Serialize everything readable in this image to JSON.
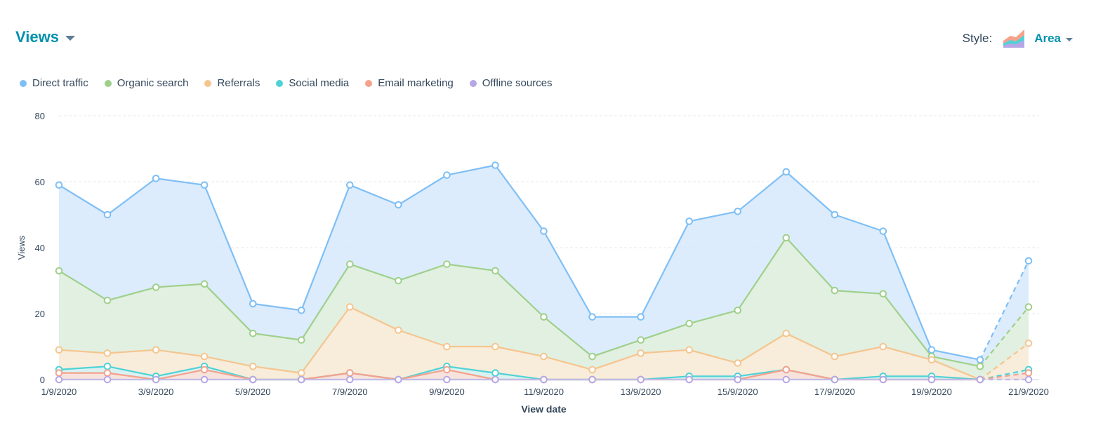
{
  "header": {
    "title": "Views"
  },
  "style_picker": {
    "label": "Style:",
    "value": "Area",
    "icon": "area-chart-icon"
  },
  "chart_data": {
    "type": "area",
    "stacked": false,
    "title": "Views",
    "xlabel": "View date",
    "ylabel": "Views",
    "ylim": [
      0,
      80
    ],
    "yticks": [
      0,
      20,
      40,
      60,
      80
    ],
    "categories": [
      "1/9/2020",
      "2/9/2020",
      "3/9/2020",
      "4/9/2020",
      "5/9/2020",
      "6/9/2020",
      "7/9/2020",
      "8/9/2020",
      "9/9/2020",
      "10/9/2020",
      "11/9/2020",
      "12/9/2020",
      "13/9/2020",
      "14/9/2020",
      "15/9/2020",
      "16/9/2020",
      "17/9/2020",
      "18/9/2020",
      "19/9/2020",
      "20/9/2020",
      "21/9/2020"
    ],
    "x_tick_labels": [
      "1/9/2020",
      "3/9/2020",
      "5/9/2020",
      "7/9/2020",
      "9/9/2020",
      "11/9/2020",
      "13/9/2020",
      "15/9/2020",
      "17/9/2020",
      "19/9/2020",
      "21/9/2020"
    ],
    "projected_last_point": true,
    "grid": true,
    "legend_position": "top-left",
    "series": [
      {
        "name": "Direct traffic",
        "color": "#7fbff5",
        "fill": "#d6e9fb",
        "values": [
          59,
          50,
          61,
          59,
          23,
          21,
          59,
          53,
          62,
          65,
          45,
          19,
          19,
          48,
          51,
          63,
          50,
          45,
          9,
          6,
          36
        ]
      },
      {
        "name": "Organic search",
        "color": "#9fd08b",
        "fill": "#e2f1dc",
        "values": [
          33,
          24,
          28,
          29,
          14,
          12,
          35,
          30,
          35,
          33,
          19,
          7,
          12,
          17,
          21,
          43,
          27,
          26,
          7,
          4,
          22
        ]
      },
      {
        "name": "Referrals",
        "color": "#f5c58f",
        "fill": "#fbebd8",
        "values": [
          9,
          8,
          9,
          7,
          4,
          2,
          22,
          15,
          10,
          10,
          7,
          3,
          8,
          9,
          5,
          14,
          7,
          10,
          6,
          0,
          11
        ]
      },
      {
        "name": "Social media",
        "color": "#4fd2d6",
        "fill": "#d3f3f4",
        "values": [
          3,
          4,
          1,
          4,
          0,
          0,
          2,
          0,
          4,
          2,
          0,
          0,
          0,
          1,
          1,
          3,
          0,
          1,
          1,
          0,
          3
        ]
      },
      {
        "name": "Email marketing",
        "color": "#f5a18c",
        "fill": "#fce0d9",
        "values": [
          2,
          2,
          0,
          3,
          0,
          0,
          2,
          0,
          3,
          0,
          0,
          0,
          0,
          0,
          0,
          3,
          0,
          0,
          0,
          0,
          2
        ]
      },
      {
        "name": "Offline sources",
        "color": "#b5a6e6",
        "fill": "#e9e4f8",
        "values": [
          0,
          0,
          0,
          0,
          0,
          0,
          0,
          0,
          0,
          0,
          0,
          0,
          0,
          0,
          0,
          0,
          0,
          0,
          0,
          0,
          0
        ]
      }
    ]
  }
}
